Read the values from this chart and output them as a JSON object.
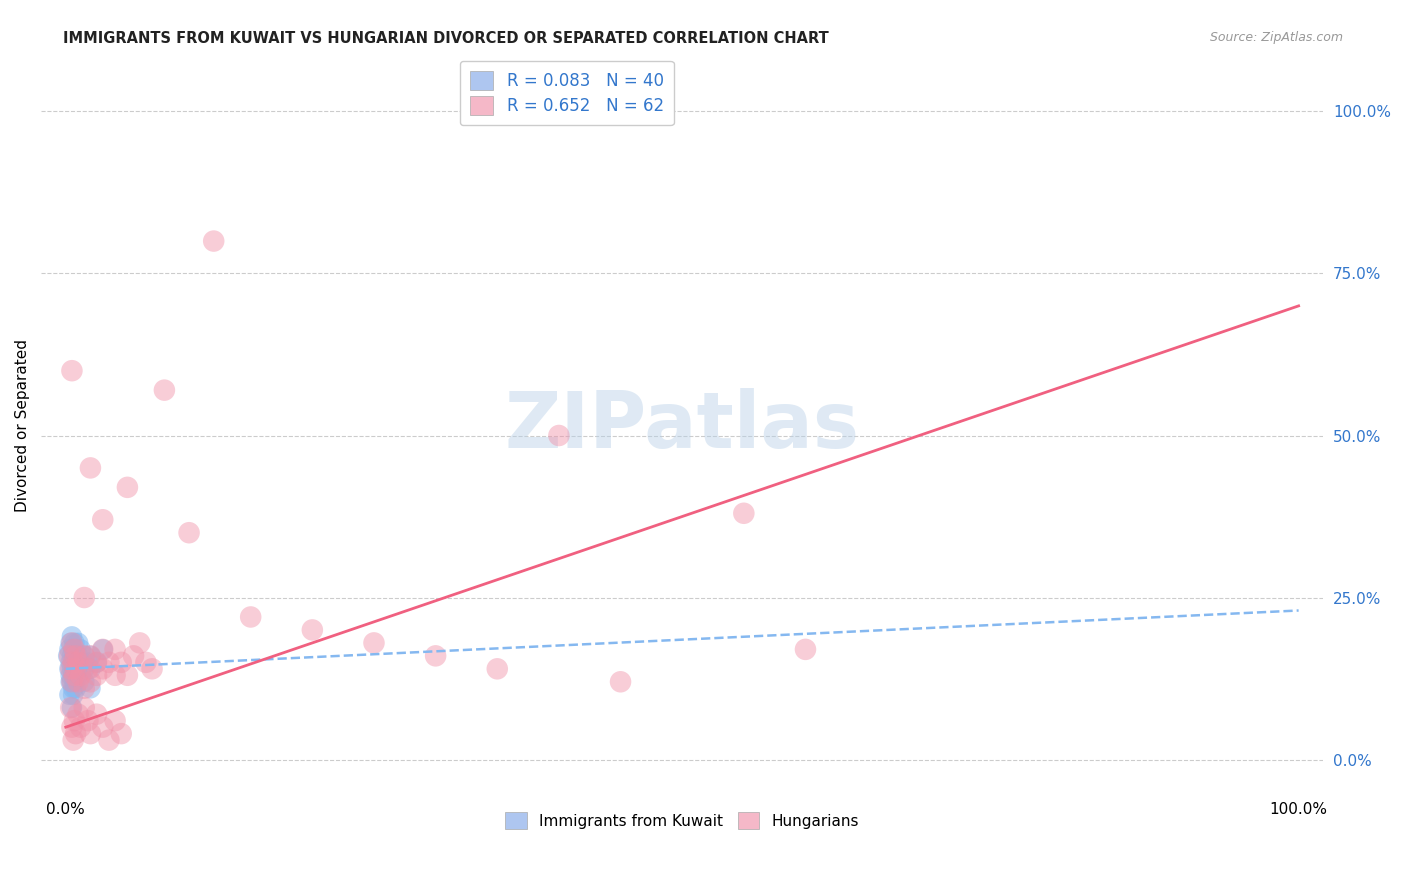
{
  "title": "IMMIGRANTS FROM KUWAIT VS HUNGARIAN DIVORCED OR SEPARATED CORRELATION CHART",
  "source": "Source: ZipAtlas.com",
  "ylabel": "Divorced or Separated",
  "xlim": [
    -2,
    102
  ],
  "ylim": [
    -5,
    108
  ],
  "x_ticks": [
    0,
    100
  ],
  "x_tick_labels": [
    "0.0%",
    "100.0%"
  ],
  "y_tick_labels_right": [
    "0.0%",
    "25.0%",
    "50.0%",
    "75.0%",
    "100.0%"
  ],
  "y_tick_vals_right": [
    0,
    25,
    50,
    75,
    100
  ],
  "legend_entries": [
    {
      "label": "R = 0.083   N = 40",
      "facecolor": "#aec6f0"
    },
    {
      "label": "R = 0.652   N = 62",
      "facecolor": "#f5b8c8"
    }
  ],
  "bottom_legend": [
    "Immigrants from Kuwait",
    "Hungarians"
  ],
  "watermark": "ZIPatlas",
  "blue_scatter": [
    [
      0.2,
      16
    ],
    [
      0.3,
      14
    ],
    [
      0.3,
      17
    ],
    [
      0.4,
      13
    ],
    [
      0.4,
      15
    ],
    [
      0.4,
      18
    ],
    [
      0.5,
      12
    ],
    [
      0.5,
      14
    ],
    [
      0.5,
      16
    ],
    [
      0.5,
      19
    ],
    [
      0.6,
      11
    ],
    [
      0.6,
      13
    ],
    [
      0.6,
      15
    ],
    [
      0.6,
      17
    ],
    [
      0.7,
      14
    ],
    [
      0.7,
      16
    ],
    [
      0.7,
      18
    ],
    [
      0.8,
      13
    ],
    [
      0.8,
      15
    ],
    [
      0.9,
      14
    ],
    [
      1.0,
      16
    ],
    [
      1.0,
      18
    ],
    [
      1.2,
      15
    ],
    [
      1.2,
      17
    ],
    [
      1.5,
      14
    ],
    [
      1.5,
      16
    ],
    [
      1.8,
      15
    ],
    [
      2.0,
      14
    ],
    [
      2.0,
      16
    ],
    [
      2.5,
      15
    ],
    [
      0.3,
      10
    ],
    [
      0.4,
      12
    ],
    [
      0.5,
      8
    ],
    [
      0.6,
      10
    ],
    [
      0.7,
      12
    ],
    [
      0.8,
      11
    ],
    [
      1.0,
      13
    ],
    [
      1.5,
      12
    ],
    [
      2.0,
      11
    ],
    [
      3.0,
      17
    ]
  ],
  "pink_scatter": [
    [
      0.3,
      16
    ],
    [
      0.4,
      14
    ],
    [
      0.5,
      12
    ],
    [
      0.5,
      18
    ],
    [
      0.6,
      15
    ],
    [
      0.7,
      13
    ],
    [
      0.7,
      17
    ],
    [
      0.8,
      14
    ],
    [
      0.8,
      16
    ],
    [
      1.0,
      12
    ],
    [
      1.0,
      15
    ],
    [
      1.2,
      13
    ],
    [
      1.5,
      11
    ],
    [
      1.5,
      16
    ],
    [
      1.8,
      14
    ],
    [
      2.0,
      12
    ],
    [
      2.0,
      16
    ],
    [
      2.5,
      13
    ],
    [
      2.5,
      15
    ],
    [
      3.0,
      14
    ],
    [
      3.0,
      17
    ],
    [
      3.5,
      15
    ],
    [
      4.0,
      13
    ],
    [
      4.0,
      17
    ],
    [
      4.5,
      15
    ],
    [
      5.0,
      13
    ],
    [
      5.5,
      16
    ],
    [
      6.0,
      18
    ],
    [
      6.5,
      15
    ],
    [
      7.0,
      14
    ],
    [
      0.4,
      8
    ],
    [
      0.5,
      5
    ],
    [
      0.6,
      3
    ],
    [
      0.7,
      6
    ],
    [
      0.8,
      4
    ],
    [
      1.0,
      7
    ],
    [
      1.2,
      5
    ],
    [
      1.5,
      8
    ],
    [
      1.8,
      6
    ],
    [
      2.0,
      4
    ],
    [
      2.5,
      7
    ],
    [
      3.0,
      5
    ],
    [
      3.5,
      3
    ],
    [
      4.0,
      6
    ],
    [
      4.5,
      4
    ],
    [
      0.5,
      60
    ],
    [
      2.0,
      45
    ],
    [
      1.5,
      25
    ],
    [
      3.0,
      37
    ],
    [
      5.0,
      42
    ],
    [
      40.0,
      50
    ],
    [
      8.0,
      57
    ],
    [
      55.0,
      38
    ],
    [
      10.0,
      35
    ],
    [
      15.0,
      22
    ],
    [
      20.0,
      20
    ],
    [
      25.0,
      18
    ],
    [
      30.0,
      16
    ],
    [
      35.0,
      14
    ],
    [
      45.0,
      12
    ],
    [
      60.0,
      17
    ],
    [
      12.0,
      80
    ]
  ],
  "blue_line": {
    "x0": 0,
    "y0": 14,
    "x1": 100,
    "y1": 23
  },
  "pink_line": {
    "x0": 0,
    "y0": 5,
    "x1": 100,
    "y1": 70
  },
  "grid_color": "#cccccc",
  "blue_dot_color": "#85b8f0",
  "pink_dot_color": "#f090a8",
  "blue_line_color": "#85b8f0",
  "pink_line_color": "#f06080",
  "right_axis_color": "#3377cc",
  "title_color": "#222222",
  "source_color": "#999999"
}
